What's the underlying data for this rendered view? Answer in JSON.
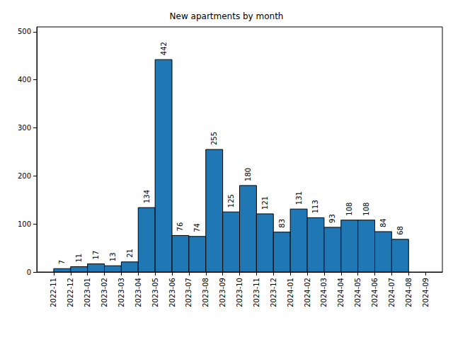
{
  "chart_data": {
    "type": "histogram",
    "title": "New apartments by month",
    "bins": [
      "2022-11",
      "2022-12",
      "2023-01",
      "2023-02",
      "2023-03",
      "2023-04",
      "2023-05",
      "2023-06",
      "2023-07",
      "2023-08",
      "2023-09",
      "2023-10",
      "2023-11",
      "2023-12",
      "2024-01",
      "2024-02",
      "2024-03",
      "2024-04",
      "2024-05",
      "2024-06",
      "2024-07",
      "2024-08"
    ],
    "values": [
      7,
      11,
      17,
      13,
      21,
      134,
      442,
      76,
      74,
      255,
      125,
      180,
      121,
      83,
      131,
      113,
      93,
      108,
      108,
      84,
      68
    ],
    "color": "#1f77b4",
    "xlim": [
      "2022-10",
      "2024-10"
    ],
    "xticks": [
      "2022-11",
      "2022-12",
      "2023-01",
      "2023-02",
      "2023-03",
      "2023-04",
      "2023-05",
      "2023-06",
      "2023-07",
      "2023-08",
      "2023-09",
      "2023-10",
      "2023-11",
      "2023-12",
      "2024-01",
      "2024-02",
      "2024-03",
      "2024-04",
      "2024-05",
      "2024-06",
      "2024-07",
      "2024-08",
      "2024-09"
    ],
    "ylim": [
      0,
      510
    ],
    "yticks": [
      0,
      100,
      200,
      300,
      400,
      500
    ],
    "grid": false,
    "data_labels": true
  }
}
